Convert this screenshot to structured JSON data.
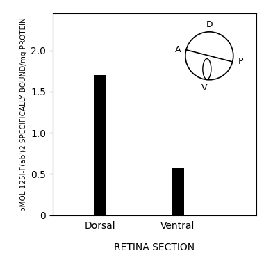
{
  "chart_data": {
    "type": "bar",
    "x_label": "RETINA SECTION",
    "y_label": "pMOL 125I-F(ab')2 SPECIFICALLY BOUND/mg PROTEIN",
    "categories": [
      "Dorsal",
      "Ventral"
    ],
    "values": [
      1.7,
      0.57
    ],
    "color": "#000000",
    "ylim": [
      0,
      2.45
    ],
    "yticks": [
      0,
      0.5,
      {
        "value": 1,
        "label": "1.0"
      },
      1.5,
      {
        "value": 2,
        "label": "2.0"
      }
    ],
    "annotations": [
      "D",
      "A",
      "P",
      "V"
    ]
  }
}
